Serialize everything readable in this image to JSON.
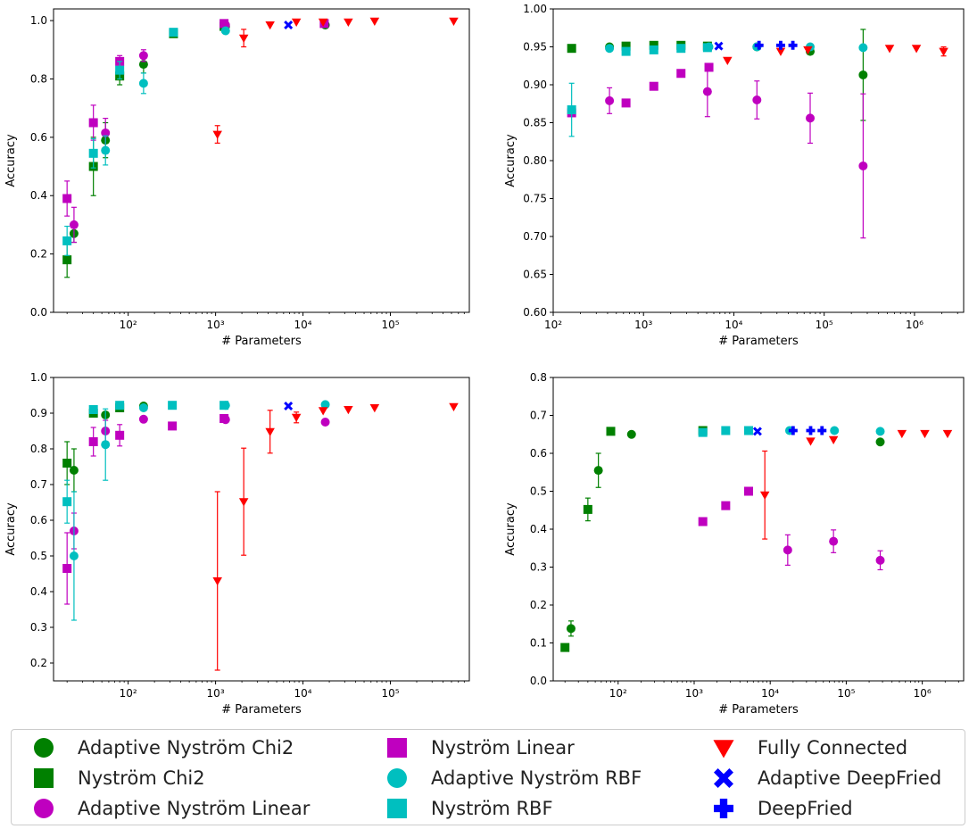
{
  "series_styles": [
    {
      "name": "Adaptive Nyström Chi2",
      "color": "#008000",
      "marker": "circle"
    },
    {
      "name": "Nyström Chi2",
      "color": "#008000",
      "marker": "square"
    },
    {
      "name": "Adaptive Nyström Linear",
      "color": "#bf00bf",
      "marker": "circle"
    },
    {
      "name": "Nyström Linear",
      "color": "#bf00bf",
      "marker": "square"
    },
    {
      "name": "Adaptive Nyström RBF",
      "color": "#00bfbf",
      "marker": "circle"
    },
    {
      "name": "Nyström RBF",
      "color": "#00bfbf",
      "marker": "square"
    },
    {
      "name": "Fully Connected",
      "color": "#ff0000",
      "marker": "triangle-down"
    },
    {
      "name": "Adaptive DeepFried",
      "color": "#0000ff",
      "marker": "x-filled"
    },
    {
      "name": "DeepFried",
      "color": "#0000ff",
      "marker": "plus-filled"
    }
  ],
  "chart_data": [
    {
      "type": "scatter",
      "xscale": "log",
      "xlabel": "# Parameters",
      "ylabel": "Accuracy",
      "xlim": [
        14,
        800000
      ],
      "ylim": [
        0.0,
        1.04
      ],
      "yticks": [
        0.0,
        0.2,
        0.4,
        0.6,
        0.8,
        1.0
      ],
      "ytick_labels": [
        "0.0",
        "0.2",
        "0.4",
        "0.6",
        "0.8",
        "1.0"
      ],
      "xticks": [
        100,
        1000,
        10000,
        100000
      ],
      "xtick_labels": [
        "10²",
        "10³",
        "10⁴",
        "10⁵"
      ],
      "series": [
        {
          "name": "Adaptive Nyström Chi2",
          "points": [
            {
              "x": 24,
              "y": 0.27,
              "err": 0.03
            },
            {
              "x": 55,
              "y": 0.59,
              "err": 0.06
            },
            {
              "x": 150,
              "y": 0.85,
              "err": 0.03
            },
            {
              "x": 1300,
              "y": 0.98
            },
            {
              "x": 18000,
              "y": 0.985
            }
          ]
        },
        {
          "name": "Nyström Chi2",
          "points": [
            {
              "x": 20,
              "y": 0.18,
              "err": 0.06
            },
            {
              "x": 40,
              "y": 0.5,
              "err": 0.1
            },
            {
              "x": 80,
              "y": 0.81,
              "err": 0.03
            },
            {
              "x": 330,
              "y": 0.955
            },
            {
              "x": 1250,
              "y": 0.98
            }
          ]
        },
        {
          "name": "Adaptive Nyström Linear",
          "points": [
            {
              "x": 24,
              "y": 0.3,
              "err": 0.06
            },
            {
              "x": 55,
              "y": 0.615,
              "err": 0.05
            },
            {
              "x": 150,
              "y": 0.88,
              "err": 0.02
            },
            {
              "x": 1300,
              "y": 0.985
            }
          ]
        },
        {
          "name": "Nyström Linear",
          "points": [
            {
              "x": 20,
              "y": 0.39,
              "err": 0.06
            },
            {
              "x": 40,
              "y": 0.65,
              "err": 0.06
            },
            {
              "x": 80,
              "y": 0.86,
              "err": 0.02
            },
            {
              "x": 1250,
              "y": 0.99
            },
            {
              "x": 17500,
              "y": 0.99
            }
          ]
        },
        {
          "name": "Adaptive Nyström RBF",
          "points": [
            {
              "x": 55,
              "y": 0.555,
              "err": 0.05
            },
            {
              "x": 150,
              "y": 0.785,
              "err": 0.035
            },
            {
              "x": 1300,
              "y": 0.965
            }
          ]
        },
        {
          "name": "Nyström RBF",
          "points": [
            {
              "x": 20,
              "y": 0.245,
              "err": 0.05
            },
            {
              "x": 40,
              "y": 0.545,
              "err": 0.05
            },
            {
              "x": 80,
              "y": 0.83,
              "err": 0.03
            },
            {
              "x": 330,
              "y": 0.96
            }
          ]
        },
        {
          "name": "Fully Connected",
          "points": [
            {
              "x": 1050,
              "y": 0.61,
              "err": 0.03
            },
            {
              "x": 2100,
              "y": 0.94,
              "err": 0.03
            },
            {
              "x": 4200,
              "y": 0.985
            },
            {
              "x": 8400,
              "y": 0.995
            },
            {
              "x": 17000,
              "y": 0.995
            },
            {
              "x": 33000,
              "y": 0.995
            },
            {
              "x": 66000,
              "y": 0.998
            },
            {
              "x": 530000,
              "y": 0.998
            }
          ]
        },
        {
          "name": "Adaptive DeepFried",
          "points": [
            {
              "x": 6800,
              "y": 0.985
            }
          ]
        }
      ]
    },
    {
      "type": "scatter",
      "xscale": "log",
      "xlabel": "# Parameters",
      "ylabel": "Accuracy",
      "xlim": [
        100,
        3500000
      ],
      "ylim": [
        0.6,
        1.0
      ],
      "yticks": [
        0.6,
        0.65,
        0.7,
        0.75,
        0.8,
        0.85,
        0.9,
        0.95,
        1.0
      ],
      "ytick_labels": [
        "0.60",
        "0.65",
        "0.70",
        "0.75",
        "0.80",
        "0.85",
        "0.90",
        "0.95",
        "1.00"
      ],
      "xticks": [
        100,
        1000,
        10000,
        100000,
        1000000
      ],
      "xtick_labels": [
        "10²",
        "10³",
        "10⁴",
        "10⁵",
        "10⁶"
      ],
      "series": [
        {
          "name": "Adaptive Nyström Chi2",
          "points": [
            {
              "x": 420,
              "y": 0.95
            },
            {
              "x": 18000,
              "y": 0.95
            },
            {
              "x": 70000,
              "y": 0.944
            },
            {
              "x": 270000,
              "y": 0.913,
              "err": 0.06
            }
          ]
        },
        {
          "name": "Nyström Chi2",
          "points": [
            {
              "x": 160,
              "y": 0.948
            },
            {
              "x": 640,
              "y": 0.951
            },
            {
              "x": 1300,
              "y": 0.952
            },
            {
              "x": 2600,
              "y": 0.952
            },
            {
              "x": 5100,
              "y": 0.951
            }
          ]
        },
        {
          "name": "Adaptive Nyström Linear",
          "points": [
            {
              "x": 420,
              "y": 0.879,
              "err": 0.017
            },
            {
              "x": 5100,
              "y": 0.891,
              "err": 0.033
            },
            {
              "x": 18000,
              "y": 0.88,
              "err": 0.025
            },
            {
              "x": 70000,
              "y": 0.856,
              "err": 0.033
            },
            {
              "x": 270000,
              "y": 0.793,
              "err": 0.095
            }
          ]
        },
        {
          "name": "Nyström Linear",
          "points": [
            {
              "x": 160,
              "y": 0.863
            },
            {
              "x": 640,
              "y": 0.876
            },
            {
              "x": 1300,
              "y": 0.898
            },
            {
              "x": 2600,
              "y": 0.915
            },
            {
              "x": 5300,
              "y": 0.923
            }
          ]
        },
        {
          "name": "Adaptive Nyström RBF",
          "points": [
            {
              "x": 420,
              "y": 0.948
            },
            {
              "x": 5300,
              "y": 0.95
            },
            {
              "x": 18000,
              "y": 0.95
            },
            {
              "x": 70000,
              "y": 0.95
            },
            {
              "x": 270000,
              "y": 0.949
            }
          ]
        },
        {
          "name": "Nyström RBF",
          "points": [
            {
              "x": 160,
              "y": 0.867,
              "err": 0.035
            },
            {
              "x": 640,
              "y": 0.944
            },
            {
              "x": 1300,
              "y": 0.946
            },
            {
              "x": 2600,
              "y": 0.948
            },
            {
              "x": 5100,
              "y": 0.949
            }
          ]
        },
        {
          "name": "Fully Connected",
          "points": [
            {
              "x": 8500,
              "y": 0.932
            },
            {
              "x": 33000,
              "y": 0.944
            },
            {
              "x": 66000,
              "y": 0.946
            },
            {
              "x": 530000,
              "y": 0.948
            },
            {
              "x": 1050000,
              "y": 0.948
            },
            {
              "x": 2100000,
              "y": 0.944,
              "err": 0.006
            }
          ]
        },
        {
          "name": "Adaptive DeepFried",
          "points": [
            {
              "x": 6800,
              "y": 0.951
            }
          ]
        },
        {
          "name": "Adaptive Nyström RBF",
          "points": []
        }
      ],
      "extra_series": [
        {
          "name": "DeepFried",
          "points": [
            {
              "x": 19000,
              "y": 0.952
            },
            {
              "x": 33000,
              "y": 0.952
            },
            {
              "x": 45000,
              "y": 0.952
            }
          ]
        }
      ]
    },
    {
      "type": "scatter",
      "xscale": "log",
      "xlabel": "# Parameters",
      "ylabel": "Accuracy",
      "xlim": [
        14,
        800000
      ],
      "ylim": [
        0.15,
        1.0
      ],
      "yticks": [
        0.2,
        0.3,
        0.4,
        0.5,
        0.6,
        0.7,
        0.8,
        0.9,
        1.0
      ],
      "ytick_labels": [
        "0.2",
        "0.3",
        "0.4",
        "0.5",
        "0.6",
        "0.7",
        "0.8",
        "0.9",
        "1.0"
      ],
      "xticks": [
        100,
        1000,
        10000,
        100000
      ],
      "xtick_labels": [
        "10²",
        "10³",
        "10⁴",
        "10⁵"
      ],
      "series": [
        {
          "name": "Adaptive Nyström Chi2",
          "points": [
            {
              "x": 24,
              "y": 0.74,
              "err": 0.06
            },
            {
              "x": 55,
              "y": 0.895
            },
            {
              "x": 150,
              "y": 0.92
            }
          ]
        },
        {
          "name": "Nyström Chi2",
          "points": [
            {
              "x": 20,
              "y": 0.76,
              "err": 0.06
            },
            {
              "x": 40,
              "y": 0.9
            },
            {
              "x": 80,
              "y": 0.915
            }
          ]
        },
        {
          "name": "Adaptive Nyström Linear",
          "points": [
            {
              "x": 24,
              "y": 0.57,
              "err": 0.05
            },
            {
              "x": 55,
              "y": 0.85,
              "err": 0.03
            },
            {
              "x": 150,
              "y": 0.883
            },
            {
              "x": 1300,
              "y": 0.882
            },
            {
              "x": 18000,
              "y": 0.875
            }
          ]
        },
        {
          "name": "Nyström Linear",
          "points": [
            {
              "x": 20,
              "y": 0.465,
              "err": 0.1
            },
            {
              "x": 40,
              "y": 0.82,
              "err": 0.04
            },
            {
              "x": 80,
              "y": 0.838,
              "err": 0.03
            },
            {
              "x": 320,
              "y": 0.864
            },
            {
              "x": 1250,
              "y": 0.885
            }
          ]
        },
        {
          "name": "Adaptive Nyström RBF",
          "points": [
            {
              "x": 24,
              "y": 0.5,
              "err": 0.18
            },
            {
              "x": 55,
              "y": 0.812,
              "err": 0.1
            },
            {
              "x": 150,
              "y": 0.915
            },
            {
              "x": 1300,
              "y": 0.922
            },
            {
              "x": 18000,
              "y": 0.924
            }
          ]
        },
        {
          "name": "Nyström RBF",
          "points": [
            {
              "x": 20,
              "y": 0.652,
              "err": 0.06
            },
            {
              "x": 40,
              "y": 0.91
            },
            {
              "x": 80,
              "y": 0.922
            },
            {
              "x": 320,
              "y": 0.922
            },
            {
              "x": 1250,
              "y": 0.922
            }
          ]
        },
        {
          "name": "Fully Connected",
          "points": [
            {
              "x": 1050,
              "y": 0.43,
              "err": 0.25
            },
            {
              "x": 2100,
              "y": 0.652,
              "err": 0.15
            },
            {
              "x": 4200,
              "y": 0.848,
              "err": 0.06
            },
            {
              "x": 8400,
              "y": 0.888,
              "err": 0.015
            },
            {
              "x": 17000,
              "y": 0.907
            },
            {
              "x": 33000,
              "y": 0.91
            },
            {
              "x": 66000,
              "y": 0.915
            },
            {
              "x": 530000,
              "y": 0.918
            }
          ]
        },
        {
          "name": "Adaptive DeepFried",
          "points": [
            {
              "x": 6800,
              "y": 0.92
            }
          ]
        }
      ]
    },
    {
      "type": "scatter",
      "xscale": "log",
      "xlabel": "# Parameters",
      "ylabel": "Accuracy",
      "xlim": [
        14,
        3500000
      ],
      "ylim": [
        0.0,
        0.8
      ],
      "yticks": [
        0.0,
        0.1,
        0.2,
        0.3,
        0.4,
        0.5,
        0.6,
        0.7,
        0.8
      ],
      "ytick_labels": [
        "0.0",
        "0.1",
        "0.2",
        "0.3",
        "0.4",
        "0.5",
        "0.6",
        "0.7",
        "0.8"
      ],
      "xticks": [
        100,
        1000,
        10000,
        100000,
        1000000
      ],
      "xtick_labels": [
        "10²",
        "10³",
        "10⁴",
        "10⁵",
        "10⁶"
      ],
      "series": [
        {
          "name": "Adaptive Nyström Chi2",
          "points": [
            {
              "x": 24,
              "y": 0.138,
              "err": 0.02
            },
            {
              "x": 55,
              "y": 0.555,
              "err": 0.045
            },
            {
              "x": 150,
              "y": 0.65
            },
            {
              "x": 280000,
              "y": 0.63
            }
          ]
        },
        {
          "name": "Nyström Chi2",
          "points": [
            {
              "x": 20,
              "y": 0.088
            },
            {
              "x": 40,
              "y": 0.452,
              "err": 0.03
            },
            {
              "x": 80,
              "y": 0.658
            },
            {
              "x": 1300,
              "y": 0.66
            }
          ]
        },
        {
          "name": "Adaptive Nyström Linear",
          "points": [
            {
              "x": 17000,
              "y": 0.345,
              "err": 0.04
            },
            {
              "x": 68000,
              "y": 0.368,
              "err": 0.03
            },
            {
              "x": 280000,
              "y": 0.318,
              "err": 0.025
            }
          ]
        },
        {
          "name": "Nyström Linear",
          "points": [
            {
              "x": 1300,
              "y": 0.42
            },
            {
              "x": 2600,
              "y": 0.462
            },
            {
              "x": 5200,
              "y": 0.5
            }
          ]
        },
        {
          "name": "Adaptive Nyström RBF",
          "points": [
            {
              "x": 18000,
              "y": 0.66
            },
            {
              "x": 70000,
              "y": 0.66
            },
            {
              "x": 280000,
              "y": 0.658
            }
          ]
        },
        {
          "name": "Nyström RBF",
          "points": [
            {
              "x": 1300,
              "y": 0.655
            },
            {
              "x": 2600,
              "y": 0.66
            },
            {
              "x": 5200,
              "y": 0.66
            }
          ]
        },
        {
          "name": "Fully Connected",
          "points": [
            {
              "x": 8500,
              "y": 0.49,
              "err": 0.116
            },
            {
              "x": 34000,
              "y": 0.632
            },
            {
              "x": 68000,
              "y": 0.636
            },
            {
              "x": 540000,
              "y": 0.652
            },
            {
              "x": 1080000,
              "y": 0.652
            },
            {
              "x": 2150000,
              "y": 0.652
            }
          ]
        },
        {
          "name": "Adaptive DeepFried",
          "points": [
            {
              "x": 6800,
              "y": 0.658
            }
          ]
        }
      ],
      "extra_series": [
        {
          "name": "DeepFried",
          "points": [
            {
              "x": 20000,
              "y": 0.66
            },
            {
              "x": 34000,
              "y": 0.66
            },
            {
              "x": 48000,
              "y": 0.66
            }
          ]
        }
      ]
    }
  ]
}
